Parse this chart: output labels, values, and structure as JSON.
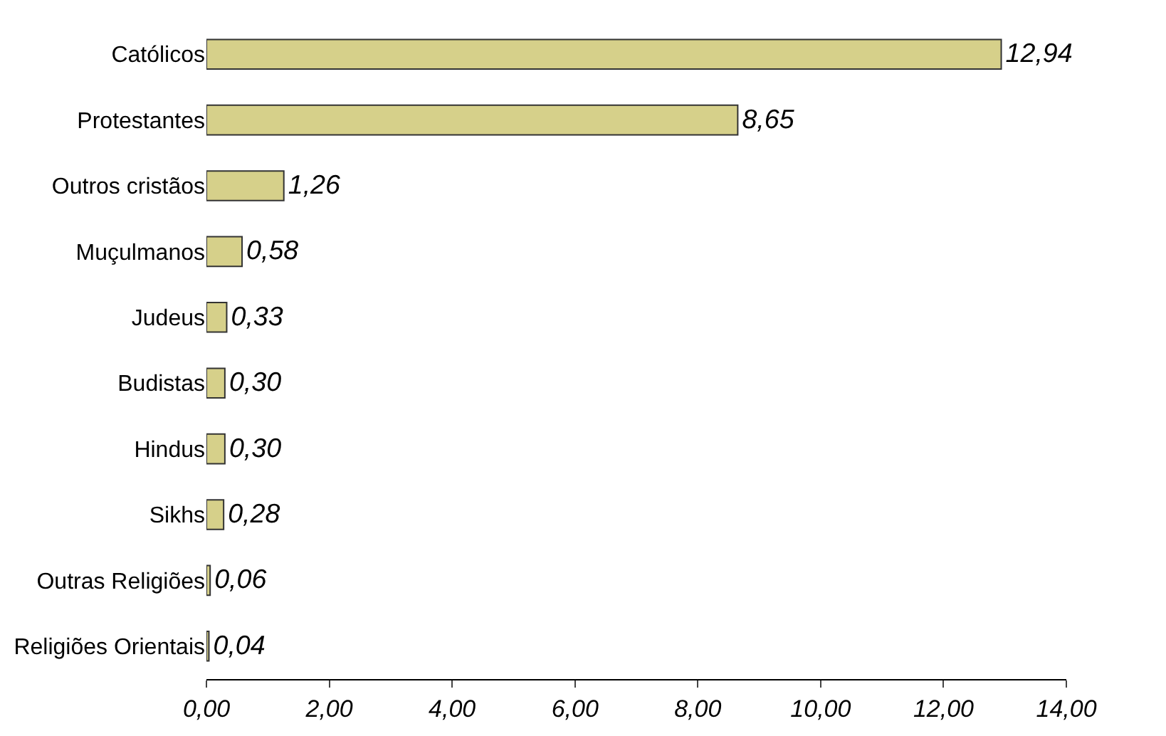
{
  "chart_data": {
    "type": "bar",
    "orientation": "horizontal",
    "categories": [
      "Católicos",
      "Protestantes",
      "Outros cristãos",
      "Muçulmanos",
      "Judeus",
      "Budistas",
      "Hindus",
      "Sikhs",
      "Outras Religiões",
      "Religiões Orientais"
    ],
    "values": [
      12.94,
      8.65,
      1.26,
      0.58,
      0.33,
      0.3,
      0.3,
      0.28,
      0.06,
      0.04
    ],
    "value_labels": [
      "12,94",
      "8,65",
      "1,26",
      "0,58",
      "0,33",
      "0,30",
      "0,30",
      "0,28",
      "0,06",
      "0,04"
    ],
    "color": "#d6d08a",
    "xlim": [
      0,
      14
    ],
    "xticks": [
      {
        "value": 0,
        "label": "0,00"
      },
      {
        "value": 2,
        "label": "2,00"
      },
      {
        "value": 4,
        "label": "4,00"
      },
      {
        "value": 6,
        "label": "6,00"
      },
      {
        "value": 8,
        "label": "8,00"
      },
      {
        "value": 10,
        "label": "10,00"
      },
      {
        "value": 12,
        "label": "12,00"
      },
      {
        "value": 14,
        "label": "14,00"
      }
    ],
    "legend": false
  }
}
